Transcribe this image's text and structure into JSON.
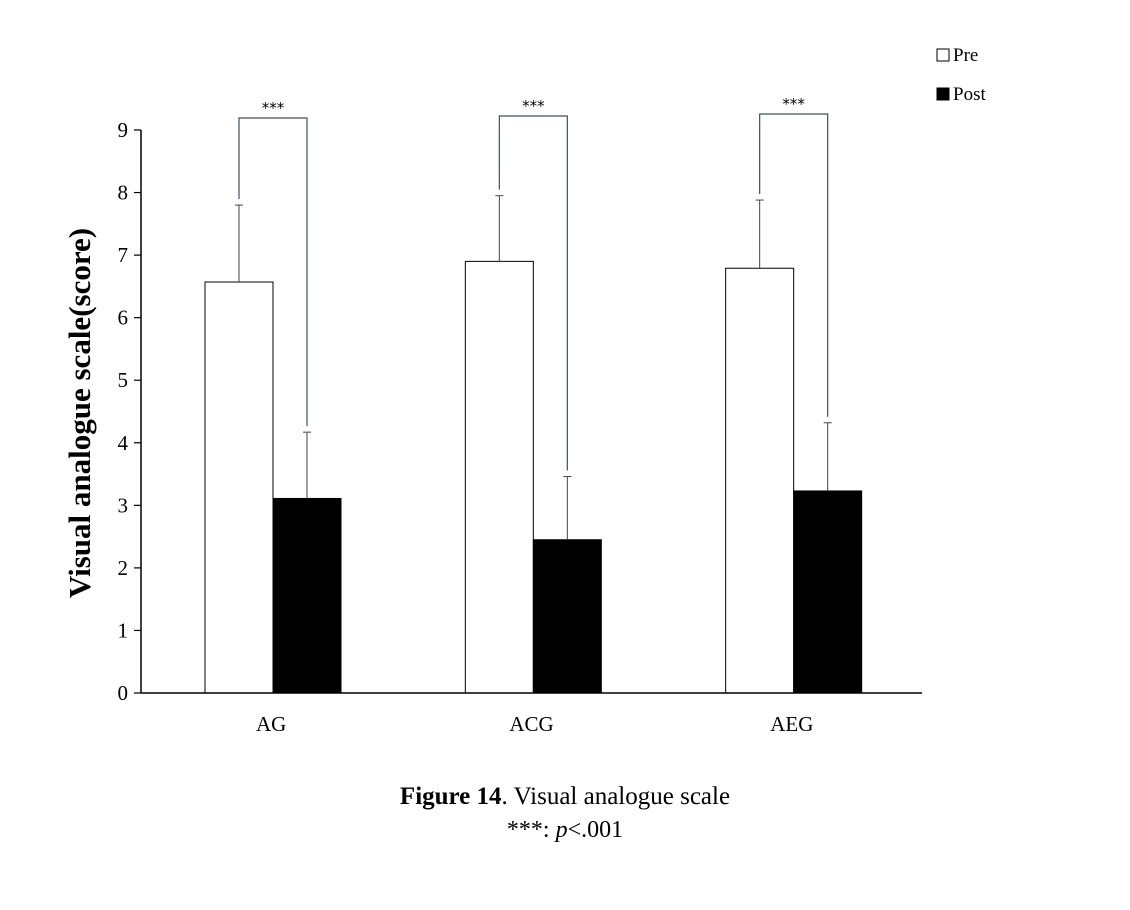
{
  "chart_data": {
    "type": "bar",
    "categories": [
      "AG",
      "ACG",
      "AEG"
    ],
    "series": [
      {
        "name": "Pre",
        "values": [
          6.57,
          6.9,
          6.79
        ],
        "errors": [
          1.23,
          1.05,
          1.09
        ],
        "color": "#ffffff"
      },
      {
        "name": "Post",
        "values": [
          3.11,
          2.45,
          3.23
        ],
        "errors": [
          1.06,
          1.01,
          1.09
        ],
        "color": "#000000"
      }
    ],
    "ylabel": "Visual analogue scale(score)",
    "ylim": [
      0,
      9
    ],
    "yticks": [
      "0",
      "1",
      "2",
      "3",
      "4",
      "5",
      "6",
      "7",
      "8",
      "9"
    ],
    "grid": false,
    "legend_position": "top-right",
    "significance_label": "***"
  },
  "caption": {
    "figure_label": "Figure 14",
    "figure_text": ". Visual analogue scale",
    "note_stars": "***: ",
    "note_p": "p",
    "note_value": "<.001"
  }
}
